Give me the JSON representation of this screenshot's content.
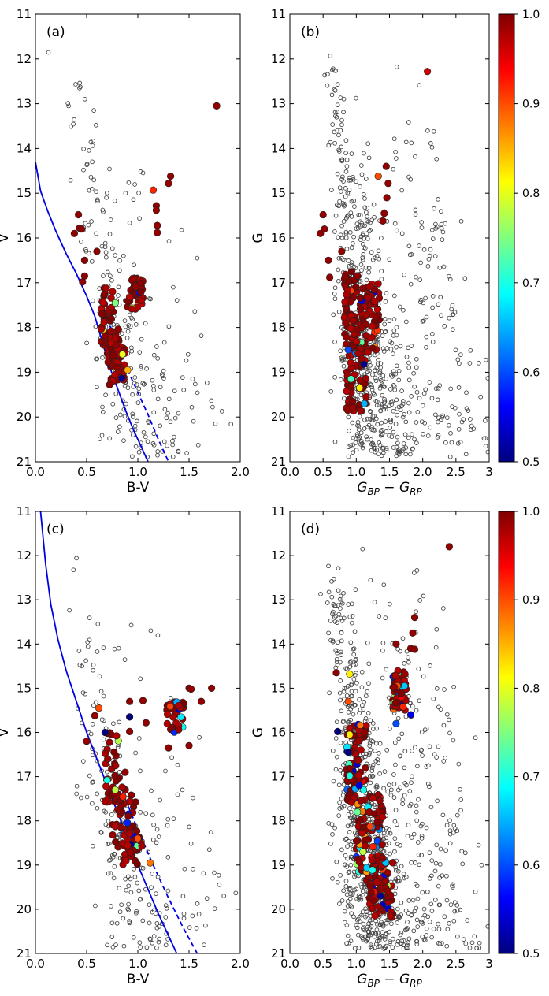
{
  "figure": {
    "description_labels": [
      "(a)",
      "(b)",
      "(c)",
      "(d)"
    ]
  },
  "chart_data": [
    {
      "id": "a",
      "type": "scatter",
      "panel_label": "(a)",
      "xlabel": "B-V",
      "ylabel": "V",
      "xlim": [
        0.0,
        2.0
      ],
      "ylim": [
        21,
        11
      ],
      "xticks": [
        "0.0",
        "0.5",
        "1.0",
        "1.5",
        "2.0"
      ],
      "yticks": [
        "11",
        "12",
        "13",
        "14",
        "15",
        "16",
        "17",
        "18",
        "19",
        "20",
        "21"
      ],
      "curves": [
        {
          "name": "isochrone",
          "style": "solid",
          "color": "#0000e6",
          "x": [
            0.0,
            0.05,
            0.12,
            0.2,
            0.3,
            0.4,
            0.5,
            0.58,
            0.65,
            0.72,
            0.8,
            0.88,
            0.95,
            1.02,
            1.1
          ],
          "y": [
            14.3,
            14.95,
            15.4,
            15.85,
            16.35,
            16.8,
            17.3,
            17.75,
            18.3,
            18.85,
            19.35,
            19.85,
            20.25,
            20.6,
            21.0
          ]
        },
        {
          "name": "binary-sequence",
          "style": "dashed",
          "color": "#0000e6",
          "x": [
            0.7,
            0.8,
            0.9,
            1.0,
            1.1,
            1.2,
            1.3
          ],
          "y": [
            17.8,
            18.4,
            18.95,
            19.45,
            19.95,
            20.5,
            21.0
          ]
        }
      ],
      "field_count": 260,
      "members": [
        {
          "x": 1.77,
          "y": 13.05,
          "p": 0.99
        },
        {
          "x": 1.15,
          "y": 14.93,
          "p": 0.92
        },
        {
          "x": 1.32,
          "y": 14.62,
          "p": 0.99
        },
        {
          "x": 1.3,
          "y": 14.78,
          "p": 0.99
        },
        {
          "x": 1.18,
          "y": 15.28,
          "p": 0.99
        },
        {
          "x": 1.18,
          "y": 15.38,
          "p": 0.99
        },
        {
          "x": 1.19,
          "y": 15.72,
          "p": 0.99
        },
        {
          "x": 1.19,
          "y": 15.88,
          "p": 0.99
        },
        {
          "x": 0.42,
          "y": 15.48,
          "p": 0.99
        },
        {
          "x": 0.43,
          "y": 15.78,
          "p": 0.99
        },
        {
          "x": 0.45,
          "y": 15.8,
          "p": 0.99
        },
        {
          "x": 0.38,
          "y": 15.9,
          "p": 0.99
        },
        {
          "x": 0.48,
          "y": 16.5,
          "p": 0.99
        },
        {
          "x": 0.48,
          "y": 16.85,
          "p": 0.99
        },
        {
          "x": 0.46,
          "y": 16.98,
          "p": 0.99
        },
        {
          "x": 0.6,
          "y": 16.3,
          "p": 0.99
        },
        {
          "x": 0.78,
          "y": 17.45,
          "p": 0.75
        },
        {
          "x": 0.85,
          "y": 18.6,
          "p": 0.8
        },
        {
          "x": 0.9,
          "y": 18.95,
          "p": 0.85
        }
      ],
      "member_cluster": {
        "count": 170,
        "core": [
          [
            0.64,
            0.76,
            17.1,
            18.4
          ],
          [
            0.7,
            0.82,
            18.0,
            18.9
          ],
          [
            0.72,
            0.88,
            18.4,
            19.3
          ],
          [
            0.9,
            1.05,
            16.9,
            17.6
          ]
        ]
      }
    },
    {
      "id": "b",
      "type": "scatter",
      "panel_label": "(b)",
      "xlabel": "G_BP - G_RP",
      "ylabel": "G",
      "xlim": [
        0.0,
        3.0
      ],
      "ylim": [
        21,
        11
      ],
      "xticks": [
        "0.0",
        "0.5",
        "1.0",
        "1.5",
        "2.0",
        "2.5",
        "3"
      ],
      "yticks": [
        "11",
        "12",
        "13",
        "14",
        "15",
        "16",
        "17",
        "18",
        "19",
        "20",
        "21"
      ],
      "field_count": 720,
      "members": [
        {
          "x": 2.07,
          "y": 12.28,
          "p": 0.96
        },
        {
          "x": 1.33,
          "y": 14.62,
          "p": 0.9
        },
        {
          "x": 1.45,
          "y": 14.4,
          "p": 0.99
        },
        {
          "x": 1.48,
          "y": 14.78,
          "p": 0.99
        },
        {
          "x": 1.46,
          "y": 15.1,
          "p": 0.99
        },
        {
          "x": 1.42,
          "y": 15.45,
          "p": 0.99
        },
        {
          "x": 1.4,
          "y": 15.62,
          "p": 0.99
        },
        {
          "x": 0.5,
          "y": 15.48,
          "p": 0.99
        },
        {
          "x": 0.52,
          "y": 15.8,
          "p": 0.99
        },
        {
          "x": 0.46,
          "y": 15.9,
          "p": 0.99
        },
        {
          "x": 0.58,
          "y": 16.5,
          "p": 0.99
        },
        {
          "x": 0.6,
          "y": 16.88,
          "p": 0.99
        },
        {
          "x": 0.78,
          "y": 16.3,
          "p": 0.99
        },
        {
          "x": 0.88,
          "y": 18.5,
          "p": 0.6
        },
        {
          "x": 0.92,
          "y": 19.15,
          "p": 0.72
        },
        {
          "x": 1.05,
          "y": 19.35,
          "p": 0.82
        },
        {
          "x": 1.12,
          "y": 19.7,
          "p": 0.65
        }
      ],
      "member_cluster": {
        "count": 190,
        "core": [
          [
            0.82,
            1.02,
            16.7,
            18.5
          ],
          [
            0.85,
            1.15,
            18.3,
            19.9
          ],
          [
            1.05,
            1.35,
            17.0,
            18.6
          ]
        ]
      }
    },
    {
      "id": "c",
      "type": "scatter",
      "panel_label": "(c)",
      "xlabel": "B-V",
      "ylabel": "V",
      "xlim": [
        0.0,
        2.0
      ],
      "ylim": [
        21,
        11
      ],
      "xticks": [
        "0.0",
        "0.5",
        "1.0",
        "1.5",
        "2.0"
      ],
      "yticks": [
        "11",
        "12",
        "13",
        "14",
        "15",
        "16",
        "17",
        "18",
        "19",
        "20",
        "21"
      ],
      "curves": [
        {
          "name": "isochrone",
          "style": "solid",
          "color": "#0000e6",
          "x": [
            0.05,
            0.1,
            0.15,
            0.22,
            0.3,
            0.4,
            0.5,
            0.6,
            0.7,
            0.8,
            0.9,
            1.0,
            1.1,
            1.2,
            1.3,
            1.38
          ],
          "y": [
            11.0,
            12.2,
            13.1,
            13.9,
            14.6,
            15.3,
            16.0,
            16.6,
            17.2,
            17.8,
            18.4,
            19.0,
            19.55,
            20.1,
            20.6,
            21.0
          ]
        },
        {
          "name": "binary-sequence",
          "style": "dashed",
          "color": "#0000e6",
          "x": [
            0.85,
            1.0,
            1.15,
            1.3,
            1.45,
            1.58
          ],
          "y": [
            17.35,
            18.2,
            19.0,
            19.75,
            20.45,
            21.0
          ]
        }
      ],
      "field_count": 240,
      "members": [
        {
          "x": 0.62,
          "y": 15.45,
          "p": 0.9
        },
        {
          "x": 0.58,
          "y": 15.62,
          "p": 0.99
        },
        {
          "x": 0.5,
          "y": 16.2,
          "p": 0.99
        },
        {
          "x": 0.92,
          "y": 15.65,
          "p": 0.5
        },
        {
          "x": 0.92,
          "y": 15.3,
          "p": 0.99
        },
        {
          "x": 0.92,
          "y": 15.98,
          "p": 0.99
        },
        {
          "x": 1.05,
          "y": 15.28,
          "p": 0.99
        },
        {
          "x": 1.08,
          "y": 15.78,
          "p": 0.99
        },
        {
          "x": 1.5,
          "y": 15.0,
          "p": 0.99
        },
        {
          "x": 1.52,
          "y": 15.02,
          "p": 0.99
        },
        {
          "x": 1.72,
          "y": 15.0,
          "p": 0.99
        },
        {
          "x": 1.62,
          "y": 15.3,
          "p": 0.99
        },
        {
          "x": 1.5,
          "y": 16.3,
          "p": 0.99
        },
        {
          "x": 1.3,
          "y": 16.35,
          "p": 0.99
        },
        {
          "x": 0.68,
          "y": 16.0,
          "p": 0.5
        },
        {
          "x": 0.7,
          "y": 17.08,
          "p": 0.7
        },
        {
          "x": 0.78,
          "y": 17.3,
          "p": 0.78
        },
        {
          "x": 1.12,
          "y": 18.95,
          "p": 0.88
        },
        {
          "x": 1.0,
          "y": 18.4,
          "p": 0.9
        }
      ],
      "member_cluster": {
        "count": 150,
        "core": [
          [
            0.68,
            0.88,
            16.0,
            17.6
          ],
          [
            0.75,
            0.98,
            17.4,
            18.6
          ],
          [
            0.85,
            1.05,
            18.2,
            19.0
          ],
          [
            1.28,
            1.45,
            15.3,
            16.0
          ]
        ]
      }
    },
    {
      "id": "d",
      "type": "scatter",
      "panel_label": "(d)",
      "xlabel": "G_BP - G_RP",
      "ylabel": "G",
      "xlim": [
        0.0,
        3.0
      ],
      "ylim": [
        21,
        11
      ],
      "xticks": [
        "0.0",
        "0.5",
        "1.0",
        "1.5",
        "2.0",
        "2.5",
        "3"
      ],
      "yticks": [
        "11",
        "12",
        "13",
        "14",
        "15",
        "16",
        "17",
        "18",
        "19",
        "20",
        "21"
      ],
      "field_count": 950,
      "members": [
        {
          "x": 2.4,
          "y": 11.8,
          "p": 0.99
        },
        {
          "x": 1.88,
          "y": 13.4,
          "p": 0.99
        },
        {
          "x": 1.85,
          "y": 13.75,
          "p": 0.99
        },
        {
          "x": 1.82,
          "y": 14.1,
          "p": 0.99
        },
        {
          "x": 1.88,
          "y": 14.12,
          "p": 0.99
        },
        {
          "x": 1.6,
          "y": 14.0,
          "p": 0.99
        },
        {
          "x": 0.7,
          "y": 14.65,
          "p": 0.99
        },
        {
          "x": 0.9,
          "y": 14.68,
          "p": 0.82
        },
        {
          "x": 0.88,
          "y": 15.3,
          "p": 0.9
        },
        {
          "x": 0.72,
          "y": 15.98,
          "p": 0.5
        },
        {
          "x": 0.9,
          "y": 16.05,
          "p": 0.82
        },
        {
          "x": 0.88,
          "y": 16.45,
          "p": 0.5
        },
        {
          "x": 0.9,
          "y": 16.98,
          "p": 0.7
        },
        {
          "x": 1.82,
          "y": 15.6,
          "p": 0.55
        },
        {
          "x": 1.6,
          "y": 15.8,
          "p": 0.6
        },
        {
          "x": 1.1,
          "y": 18.7,
          "p": 0.78
        }
      ],
      "member_cluster": {
        "count": 330,
        "core": [
          [
            0.85,
            1.15,
            15.8,
            17.6
          ],
          [
            1.0,
            1.4,
            17.4,
            19.2
          ],
          [
            1.15,
            1.55,
            18.8,
            20.2
          ],
          [
            1.55,
            1.75,
            14.6,
            15.5
          ]
        ]
      }
    }
  ],
  "colorbars": [
    {
      "id": "cbar-top",
      "min": 0.5,
      "max": 1.0,
      "ticks": [
        "0.5",
        "0.6",
        "0.7",
        "0.8",
        "0.9",
        "1.0"
      ]
    },
    {
      "id": "cbar-bottom",
      "min": 0.5,
      "max": 1.0,
      "ticks": [
        "0.5",
        "0.6",
        "0.7",
        "0.8",
        "0.9",
        "1.0"
      ]
    }
  ]
}
